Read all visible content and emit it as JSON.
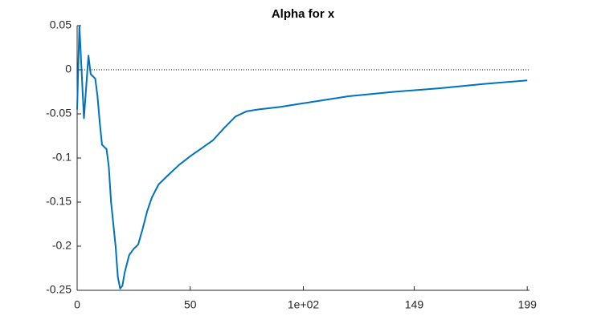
{
  "chart_data": {
    "type": "line",
    "title": "Alpha for x",
    "x": [
      0,
      1,
      3,
      5,
      6,
      8,
      9,
      10,
      11,
      13,
      14,
      15,
      17,
      18,
      19,
      20,
      21,
      23,
      25,
      27,
      29,
      31,
      33,
      36,
      40,
      45,
      50,
      55,
      60,
      65,
      70,
      75,
      80,
      90,
      100,
      120,
      140,
      160,
      180,
      199
    ],
    "series": [
      {
        "color": "#0072bd",
        "values": [
          -0.045,
          0.05,
          -0.055,
          0.016,
          -0.005,
          -0.01,
          -0.03,
          -0.06,
          -0.085,
          -0.09,
          -0.11,
          -0.15,
          -0.2,
          -0.235,
          -0.248,
          -0.245,
          -0.23,
          -0.21,
          -0.203,
          -0.198,
          -0.18,
          -0.16,
          -0.145,
          -0.13,
          -0.12,
          -0.108,
          -0.098,
          -0.089,
          -0.08,
          -0.066,
          -0.053,
          -0.047,
          -0.045,
          -0.042,
          -0.038,
          -0.03,
          -0.025,
          -0.021,
          -0.016,
          -0.012
        ]
      }
    ],
    "xlim": [
      0,
      200
    ],
    "ylim": [
      -0.25,
      0.05
    ],
    "xticks": [
      0,
      50,
      {
        "value": 100,
        "label": "1e+02"
      },
      149,
      199
    ],
    "yticks": [
      -0.25,
      -0.2,
      -0.15,
      -0.1,
      -0.05,
      0,
      0.05
    ],
    "hline": 0
  }
}
